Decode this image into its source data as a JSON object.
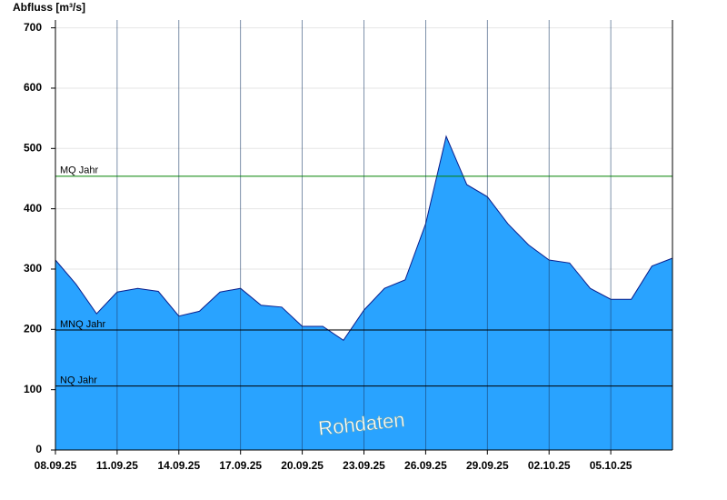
{
  "chart_data": {
    "type": "area",
    "y_label": "Abfluss [m³/s]",
    "annotation": "Rohdaten",
    "x": [
      "08.09.25",
      "09.09.25",
      "10.09.25",
      "11.09.25",
      "12.09.25",
      "13.09.25",
      "14.09.25",
      "15.09.25",
      "16.09.25",
      "17.09.25",
      "18.09.25",
      "19.09.25",
      "20.09.25",
      "21.09.25",
      "22.09.25",
      "23.09.25",
      "24.09.25",
      "25.09.25",
      "26.09.25",
      "27.09.25",
      "28.09.25",
      "29.09.25",
      "30.09.25",
      "01.10.25",
      "02.10.25",
      "03.10.25",
      "04.10.25",
      "05.10.25",
      "06.10.25",
      "07.10.25",
      "08.10.25"
    ],
    "values": [
      315,
      275,
      226,
      262,
      268,
      263,
      222,
      230,
      262,
      268,
      240,
      237,
      205,
      205,
      182,
      232,
      268,
      282,
      375,
      520,
      440,
      420,
      375,
      340,
      315,
      310,
      268,
      250,
      250,
      305,
      318
    ],
    "color": "#29a3ff",
    "line_color": "#0a1e8c",
    "xlim": [
      "08.09.25",
      "08.10.25"
    ],
    "xticks": [
      "08.09.25",
      "11.09.25",
      "14.09.25",
      "17.09.25",
      "20.09.25",
      "23.09.25",
      "26.09.25",
      "29.09.25",
      "02.10.25",
      "05.10.25"
    ],
    "ylim": [
      0,
      713
    ],
    "yticks": [
      0,
      100,
      200,
      300,
      400,
      500,
      600,
      700
    ],
    "grid": true,
    "reference_lines": [
      {
        "label": "MQ Jahr",
        "value": 454,
        "color": "#008000"
      },
      {
        "label": "MNQ Jahr",
        "value": 199,
        "color": "#000000"
      },
      {
        "label": "NQ Jahr",
        "value": 106,
        "color": "#000000"
      }
    ]
  }
}
